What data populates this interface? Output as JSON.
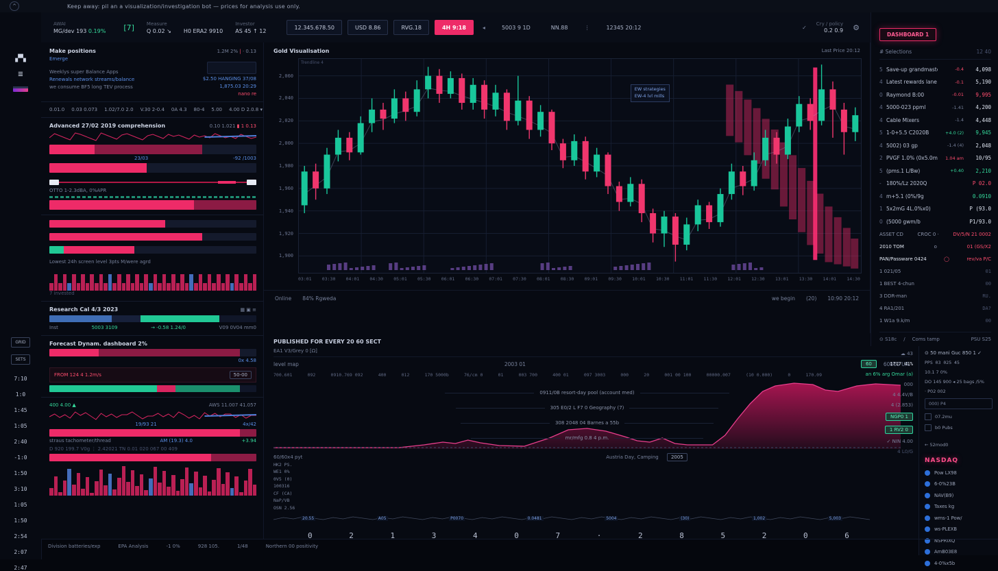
{
  "notice": {
    "text": "Keep away: pil an a visualization/investigation bot — prices for analysis use only."
  },
  "topbar": {
    "awai_label": "AWAI",
    "awai_value": "MG/dev 193",
    "awai_change": "0.19%",
    "bracket": "[7]",
    "measure_label": "Measure",
    "measure_value": "Q 0.02 ↘",
    "mid_value": "H0   ERA2   9910",
    "investor_label": "Investor",
    "investor_value": "AS 45 ↑ 12",
    "buttons": [
      {
        "label": "12.345.678.50",
        "style": "outline"
      },
      {
        "label": "USD 8.86",
        "style": "outline"
      },
      {
        "label": "RVG.18",
        "style": "outline"
      },
      {
        "label": "4H 9:18",
        "style": "pink"
      },
      {
        "label": "◂",
        "style": "ghost"
      },
      {
        "label": "5003 9 1D",
        "style": "plain"
      },
      {
        "label": "NN.88",
        "style": "plain"
      },
      {
        "label": "⋮",
        "style": "ghost"
      },
      {
        "label": "12345   20:12",
        "style": "plain"
      }
    ],
    "check": "✓",
    "policy_label": "Cry / policy",
    "policy_value": "0.2    0.9",
    "gear": "⚙"
  },
  "rail": {
    "icons": [
      "candles-icon",
      "news-icon",
      "layers-icon"
    ],
    "chips": [
      "GRID",
      "SETS"
    ],
    "times": [
      "7:10",
      "1:0",
      "1:45",
      "1:05",
      "2:40",
      "-1:0",
      "1:50",
      "3:10",
      "1:05",
      "1:50",
      "2:54",
      "2:07",
      "2:47"
    ]
  },
  "left": {
    "card1": {
      "title": "Make positions",
      "value": "1.2M  2%",
      "badge": "0.13",
      "link1": "Emerge",
      "link2": "Weeklys super   Balance   Apps",
      "link3": "Renewals network streams/balance",
      "link3_value": "$2.50  HANGING  37/08",
      "link4": "we consume   BF5 long TEV process",
      "link4_value": "1,875.03  20:29",
      "note": "nano re"
    },
    "tabs": [
      "0.01.0",
      "0.03 0.073",
      "1.02/7.0 2.0",
      "V.30 2-0.4",
      "0A 4.3",
      "80-4",
      "5.00",
      "4.00 D 2.0.8 ▾"
    ],
    "card2": {
      "title": "Advanced 27/02 2019 comprehension",
      "value": "0.10  1.021",
      "badge": "1 0.13",
      "mid_label": "23/03",
      "right_small": "-92 /1003"
    },
    "card3": {
      "title": "OTTO 1-2.3dBA, 0%APR"
    },
    "hist_label": "Lowest 24h screen level 3pts   M/were agrd",
    "hist_sub": "7 invested",
    "card4": {
      "title": "Research Cal 4/3 2023",
      "icons": "▦ ▣ ≡",
      "row_label": "Inst",
      "row_green": "5003 3109",
      "row_mid": "→  -0.58  1.24/0",
      "row_right": "V09   0V04   mm0"
    },
    "card5": {
      "title": "Forecast Dynam. dashboard 2%",
      "right_small": "0x 4.58",
      "alert_left": "FROM    124 4    1.2m/s",
      "alert_box": "50-00"
    },
    "card6": {
      "top_green": "400  4.00 ▲",
      "top_right": "AWS  11.007  41.057",
      "spark_tag": "4x/42",
      "mid_label": "19/93 21",
      "bar_label": "AM (19.3) 4.0",
      "bar_note": "+3.94",
      "sub_title": "straus tachometer/thread",
      "row": "D    920 199.7    V0g ⋮    2.42021 TN 0.01    020 067    00 409"
    }
  },
  "chart_data": [
    {
      "type": "candlestick",
      "title": "Gold Visualisation",
      "corner_label": "Trendline 4",
      "last_label": "Last Price 20:12",
      "ylim": [
        1885,
        2075
      ],
      "yticks": [
        2060,
        2040,
        2020,
        2000,
        1980,
        1960,
        1940,
        1920,
        1900
      ],
      "xticks": [
        "03:01",
        "03:30",
        "04:01",
        "04:30",
        "05:01",
        "05:30",
        "06:01",
        "06:30",
        "07:01",
        "07:30",
        "08:01",
        "08:30",
        "09:01",
        "09:30",
        "10:01",
        "10:30",
        "11:01",
        "11:30",
        "12:01",
        "12:30",
        "13:01",
        "13:30",
        "14:01",
        "14:30"
      ],
      "candles": [
        [
          1945,
          1975,
          1938,
          1980
        ],
        [
          1975,
          1960,
          1950,
          1982
        ],
        [
          1960,
          1990,
          1955,
          1996
        ],
        [
          1990,
          2005,
          1984,
          2012
        ],
        [
          2005,
          1992,
          1985,
          2010
        ],
        [
          1992,
          2018,
          1990,
          2024
        ],
        [
          2018,
          2030,
          2010,
          2040
        ],
        [
          2030,
          2022,
          2012,
          2036
        ],
        [
          2022,
          2040,
          2018,
          2048
        ],
        [
          2040,
          2028,
          2020,
          2046
        ],
        [
          2028,
          2048,
          2024,
          2056
        ],
        [
          2048,
          2060,
          2040,
          2068
        ],
        [
          2060,
          2044,
          2036,
          2066
        ],
        [
          2044,
          2058,
          2040,
          2064
        ],
        [
          2058,
          2036,
          2030,
          2062
        ],
        [
          2036,
          2052,
          2030,
          2058
        ],
        [
          2052,
          2030,
          2022,
          2056
        ],
        [
          2030,
          2045,
          2024,
          2052
        ],
        [
          2045,
          2020,
          2012,
          2048
        ],
        [
          2020,
          2038,
          2016,
          2060
        ],
        [
          2038,
          2012,
          2004,
          2042
        ],
        [
          2012,
          2028,
          2006,
          2034
        ],
        [
          2028,
          2000,
          1994,
          2030
        ],
        [
          2000,
          1985,
          1978,
          2004
        ],
        [
          1985,
          2002,
          1980,
          2008
        ],
        [
          2002,
          1975,
          1968,
          2006
        ],
        [
          1975,
          1990,
          1970,
          1996
        ],
        [
          1990,
          1962,
          1955,
          1992
        ],
        [
          1962,
          1948,
          1940,
          1966
        ],
        [
          1948,
          1964,
          1944,
          1970
        ],
        [
          1964,
          1938,
          1930,
          1968
        ],
        [
          1938,
          1920,
          1912,
          1942
        ],
        [
          1920,
          1935,
          1908,
          1940
        ],
        [
          1935,
          1910,
          1895,
          1938
        ],
        [
          1910,
          1928,
          1905,
          1934
        ],
        [
          1928,
          1945,
          1922,
          1950
        ],
        [
          1945,
          1930,
          1924,
          1948
        ],
        [
          1930,
          1955,
          1926,
          1960
        ],
        [
          1955,
          1975,
          1950,
          1982
        ],
        [
          1975,
          1962,
          1954,
          1980
        ],
        [
          1962,
          1985,
          1958,
          1992
        ],
        [
          1985,
          2005,
          1980,
          2012
        ],
        [
          2005,
          1990,
          1982,
          2010
        ],
        [
          1990,
          2015,
          1986,
          2022
        ],
        [
          2015,
          2035,
          2010,
          2042
        ],
        [
          2035,
          2020,
          2012,
          2040
        ],
        [
          2020,
          2048,
          2016,
          2070
        ],
        [
          2048,
          2030,
          2005,
          2055
        ],
        [
          2030,
          2010,
          1990,
          2036
        ],
        [
          2010,
          2025,
          2002,
          2032
        ]
      ],
      "cascade": [
        {
          "x": 76,
          "top": 12,
          "len": 24
        },
        {
          "x": 77.6,
          "top": 15,
          "len": 24
        },
        {
          "x": 79.2,
          "top": 19,
          "len": 26
        },
        {
          "x": 80.8,
          "top": 23,
          "len": 26
        },
        {
          "x": 82.4,
          "top": 28,
          "len": 28
        },
        {
          "x": 84,
          "top": 33,
          "len": 28
        },
        {
          "x": 85.6,
          "top": 39,
          "len": 30
        },
        {
          "x": 87.2,
          "top": 45,
          "len": 30
        },
        {
          "x": 88.8,
          "top": 51,
          "len": 30
        },
        {
          "x": 90.4,
          "top": 57,
          "len": 30
        },
        {
          "x": 92,
          "top": 63,
          "len": 28
        },
        {
          "x": 93.6,
          "top": 69,
          "len": 26
        },
        {
          "x": 95.2,
          "top": 74,
          "len": 22
        },
        {
          "x": 96.8,
          "top": 79,
          "len": 18
        },
        {
          "x": 98.2,
          "top": 84,
          "len": 14
        }
      ],
      "volume_groups": [
        {
          "start": 5,
          "bars": 9
        },
        {
          "start": 16,
          "bars": 7
        },
        {
          "start": 27,
          "bars": 8
        },
        {
          "start": 43,
          "bars": 6
        },
        {
          "start": 56,
          "bars": 7
        },
        {
          "start": 77,
          "bars": 6
        }
      ],
      "tooltip": {
        "line1": "EW strategies",
        "line2": "EW-4 lvl mills"
      },
      "footer": {
        "a": "Online",
        "b": "84% Rgweda",
        "c": "we begin",
        "d": "(20)",
        "e": "10:90  20:12"
      }
    },
    {
      "type": "area",
      "title": "PUBLISHED FOR EVERY 20 60 SECT",
      "subrow": "EA1 V3/Grey 0    [Ω]",
      "row_left": "level map",
      "row_center": "2003 01",
      "badge": "60",
      "badge_value": "60000 UA.",
      "cols": [
        "700.601",
        "092",
        "0910.769 092",
        "400",
        "012",
        "170 5000b",
        "76/cm 0",
        "01",
        "003 700",
        "400 01",
        "097 3003",
        "000",
        "20",
        "001 00 100",
        "00000.007",
        "(10 0.000)",
        "0",
        "170.09"
      ],
      "points": [
        [
          0,
          2
        ],
        [
          20,
          2
        ],
        [
          24,
          6
        ],
        [
          27,
          10
        ],
        [
          29,
          8
        ],
        [
          31,
          13
        ],
        [
          33,
          9
        ],
        [
          36,
          5
        ],
        [
          40,
          4
        ],
        [
          44,
          16
        ],
        [
          47,
          28
        ],
        [
          50,
          30
        ],
        [
          53,
          26
        ],
        [
          56,
          18
        ],
        [
          58,
          12
        ],
        [
          60,
          10
        ],
        [
          62,
          16
        ],
        [
          64,
          8
        ],
        [
          66,
          6
        ],
        [
          70,
          6
        ],
        [
          72,
          20
        ],
        [
          74,
          44
        ],
        [
          76,
          66
        ],
        [
          78,
          84
        ],
        [
          80,
          92
        ],
        [
          83,
          96
        ],
        [
          86,
          94
        ],
        [
          88,
          86
        ],
        [
          90,
          84
        ],
        [
          93,
          92
        ],
        [
          96,
          95
        ],
        [
          100,
          93
        ]
      ],
      "annotations": [
        "0911/0B resort-day pool (account med)",
        "305 E0/2 L F7 0 Geography (7)",
        "308 2048 04 Barnes a 55b",
        "mr/mfg 0.8 4 p.m."
      ],
      "below_label": "60/60x4 pyt",
      "below_center": "Austria Day, Camping",
      "below_badge": "2005",
      "left_vals": [
        "HK2 PS.",
        "WE1 0%",
        "0V5 (0)",
        "100316",
        "CF (CA)",
        "NaP/VB",
        "OSN 2.56"
      ],
      "spark_tags": [
        "20.55",
        "A05",
        "P0070",
        "0.0481",
        "5004",
        "(30)",
        "1,002",
        "5,003"
      ],
      "digits": [
        "0",
        "2",
        "1",
        "3",
        "4",
        "0",
        "7",
        "·",
        "2",
        "8",
        "5",
        "2",
        "0",
        "6"
      ],
      "right_col": {
        "cloud": "☁ 43",
        "v1": "1717 41%",
        "green_row": "an 6% arg Omar (a)",
        "v2": "000",
        "v3": "4    4.4V/B",
        "v4": "4   (2.853)",
        "btn1": "NGP0 1",
        "btn2": "1 RV2 0",
        "check": "✓ NIN 4.00",
        "v5": "4 L0/G"
      }
    }
  ],
  "watch": {
    "button": "DASHBOARD 1",
    "header_left": "# Selections",
    "header_right": "12    40",
    "rows": [
      {
        "n": "5",
        "name": "Save-up grandmaster",
        "mid": "-0.4",
        "mc": "red",
        "val": "4,098",
        "vc": "wht"
      },
      {
        "n": "4",
        "name": "Latest rewards lane",
        "mid": "-0.1",
        "mc": "red",
        "val": "5,190",
        "vc": "wht"
      },
      {
        "n": "0",
        "name": "Raymond B:00",
        "mid": "-0.01",
        "mc": "red",
        "val": "9,995",
        "vc": "red"
      },
      {
        "n": "4",
        "name": "5000-023 ppml",
        "mid": "-1.41",
        "mc": "mut",
        "val": "4,200",
        "vc": "wht"
      },
      {
        "n": "4",
        "name": "Cable Mixers",
        "mid": "-1.4",
        "mc": "mut",
        "val": "4,448",
        "vc": "wht"
      },
      {
        "n": "5",
        "name": "1-0+5.5 C2020B",
        "mid": "+4.0 (2)",
        "mc": "grn",
        "val": "9,945",
        "vc": "grn"
      },
      {
        "n": "4",
        "name": "5002) 03 gp",
        "mid": "-1.4 (4)",
        "mc": "mut",
        "val": "2,048",
        "vc": "wht"
      },
      {
        "n": "2",
        "name": "PVGF 1.0% (0x5.0mb)",
        "mid": "1.04 am",
        "mc": "red",
        "val": "10/95",
        "vc": "wht"
      },
      {
        "n": "5",
        "name": "(pms.1 L/Bw)",
        "mid": "+0.40",
        "mc": "grn",
        "val": "2,210",
        "vc": "grn"
      },
      {
        "n": "-",
        "name": "180%/Lz 2020Q",
        "mid": "",
        "mc": "mut",
        "val": "P 02.0",
        "vc": "red"
      },
      {
        "n": "4",
        "name": "m+5.1 (0%/9g",
        "mid": "",
        "mc": "mut",
        "val": "0.0910",
        "vc": "grn"
      },
      {
        "n": "1",
        "name": "5x2mG 4L.0%x0)",
        "mid": "",
        "mc": "mut",
        "val": "P (93.0",
        "vc": "wht"
      },
      {
        "n": "0",
        "name": "(5000 gwm/b",
        "mid": "",
        "mc": "mut",
        "val": "P1/93.0",
        "vc": "wht"
      }
    ],
    "asset_row": {
      "l": "ASSET CD",
      "m": "CROC 0  ·",
      "r": "DV/5/N 21 0002"
    },
    "tom_row": {
      "l": "2010  TOM",
      "m": "o",
      "r": "01 (GS/X2"
    },
    "pan_row": {
      "l": "PAN/Passware 0424",
      "icon": "◯",
      "r": "rev/va P/C"
    },
    "num_rows": [
      {
        "n": "1",
        "l": "021/05",
        "r": "01"
      },
      {
        "n": "1",
        "l": "BEST 4-chun",
        "r": "00"
      },
      {
        "n": "3",
        "l": "DDR-man",
        "r": "RU."
      },
      {
        "n": "4",
        "l": "RA1/201",
        "r": "DA?"
      },
      {
        "n": "1",
        "l": "W1a 9.k/m",
        "r": "00"
      }
    ],
    "footer": {
      "a": "⊙ S18c",
      "b": "/",
      "c": "Coms tamp",
      "d": "PSU S25"
    }
  },
  "rbot": {
    "header": "⊙ 50 mani   Guc   850   1   ✓",
    "line1": "PPS 03    025 45",
    "line2": "10.1   7 0%",
    "alert": "DO 145  900 ◂  25 bags /5%",
    "line3": "·  P02    002",
    "input": "000) P4",
    "checks": [
      "07.2mu",
      "b0 Pubs"
    ],
    "back": "←  52mod0",
    "title": "NASDAQ",
    "items": [
      "Pow LX98",
      "6-0%23B",
      "NAV(B9)",
      "Taxes kg",
      "wms-1 Pow/",
      "ws-PLEXB",
      "NSPRIXQ",
      "AmB03E8",
      "4-0%x5b"
    ]
  },
  "gfoot": {
    "items": [
      "Division batteries/exp",
      "EPA Analysis",
      "-1 0%",
      "928 105.",
      "1/48",
      "Northern 00 positivity"
    ]
  },
  "colors": {
    "up": "#19c79b",
    "down": "#f0366d",
    "pink": "#ee2b68",
    "area": "#c2175b",
    "blue": "#4f7fd9",
    "purple": "#6b4a9e",
    "accent_green": "#2ed7a1"
  }
}
